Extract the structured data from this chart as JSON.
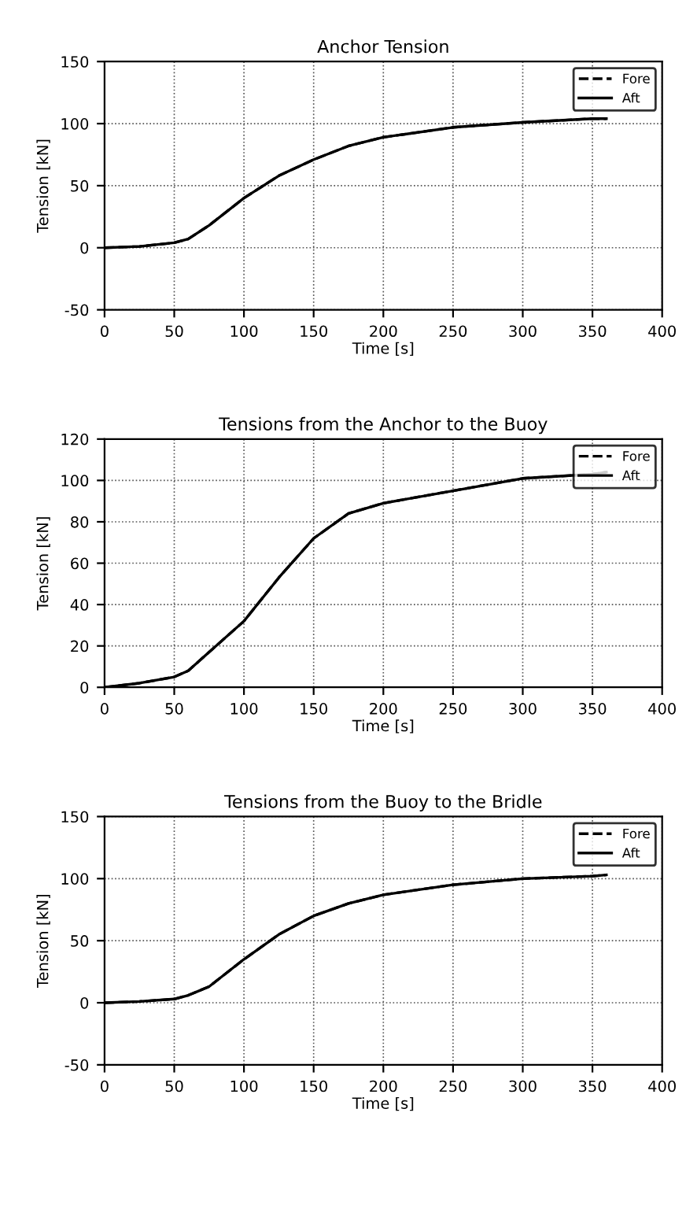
{
  "chart_data": [
    {
      "type": "line",
      "title": "Anchor Tension",
      "xlabel": "Time [s]",
      "ylabel": "Tension [kN]",
      "x": [
        0,
        25,
        50,
        60,
        75,
        100,
        125,
        150,
        175,
        200,
        250,
        300,
        350,
        360
      ],
      "series": [
        {
          "name": "Fore",
          "color": "#000000",
          "line_style": "dashed",
          "values": [
            0,
            1,
            4,
            7,
            18,
            40,
            58,
            71,
            82,
            89,
            97,
            101,
            104,
            104
          ]
        },
        {
          "name": "Aft",
          "color": "#000000",
          "line_style": "solid",
          "values": [
            0,
            1,
            4,
            7,
            18,
            40,
            58,
            71,
            82,
            89,
            97,
            101,
            104,
            104
          ]
        }
      ],
      "xlim": [
        0,
        400
      ],
      "xticks": [
        0,
        50,
        100,
        150,
        200,
        250,
        300,
        350,
        400
      ],
      "ylim": [
        -50,
        150
      ],
      "yticks": [
        -50,
        0,
        50,
        100,
        150
      ],
      "grid": true,
      "legend": "top right",
      "marker": "none"
    },
    {
      "type": "line",
      "title": "Tensions from the Anchor to the Buoy",
      "xlabel": "Time [s]",
      "ylabel": "Tension [kN]",
      "x": [
        0,
        25,
        50,
        60,
        75,
        100,
        125,
        150,
        175,
        200,
        250,
        300,
        350,
        360
      ],
      "series": [
        {
          "name": "Fore",
          "color": "#000000",
          "line_style": "dashed",
          "values": [
            0,
            2,
            5,
            8,
            17,
            32,
            53,
            72,
            84,
            89,
            95,
            101,
            103,
            104
          ]
        },
        {
          "name": "Aft",
          "color": "#000000",
          "line_style": "solid",
          "values": [
            0,
            2,
            5,
            8,
            17,
            32,
            53,
            72,
            84,
            89,
            95,
            101,
            103,
            104
          ]
        }
      ],
      "xlim": [
        0,
        400
      ],
      "xticks": [
        0,
        50,
        100,
        150,
        200,
        250,
        300,
        350,
        400
      ],
      "ylim": [
        0,
        120
      ],
      "yticks": [
        0,
        20,
        40,
        60,
        80,
        100,
        120
      ],
      "grid": true,
      "legend": "top right",
      "marker": "none"
    },
    {
      "type": "line",
      "title": "Tensions from the Buoy to the Bridle",
      "xlabel": "Time [s]",
      "ylabel": "Tension [kN]",
      "x": [
        0,
        25,
        50,
        60,
        75,
        100,
        125,
        150,
        175,
        200,
        250,
        300,
        350,
        360
      ],
      "series": [
        {
          "name": "Fore",
          "color": "#000000",
          "line_style": "dashed",
          "values": [
            0,
            1,
            3,
            6,
            13,
            35,
            55,
            70,
            80,
            87,
            95,
            100,
            102,
            103
          ]
        },
        {
          "name": "Aft",
          "color": "#000000",
          "line_style": "solid",
          "values": [
            0,
            1,
            3,
            6,
            13,
            35,
            55,
            70,
            80,
            87,
            95,
            100,
            102,
            103
          ]
        }
      ],
      "xlim": [
        0,
        400
      ],
      "xticks": [
        0,
        50,
        100,
        150,
        200,
        250,
        300,
        350,
        400
      ],
      "ylim": [
        -50,
        150
      ],
      "yticks": [
        -50,
        0,
        50,
        100,
        150
      ],
      "grid": true,
      "legend": "top right",
      "marker": "none"
    }
  ]
}
